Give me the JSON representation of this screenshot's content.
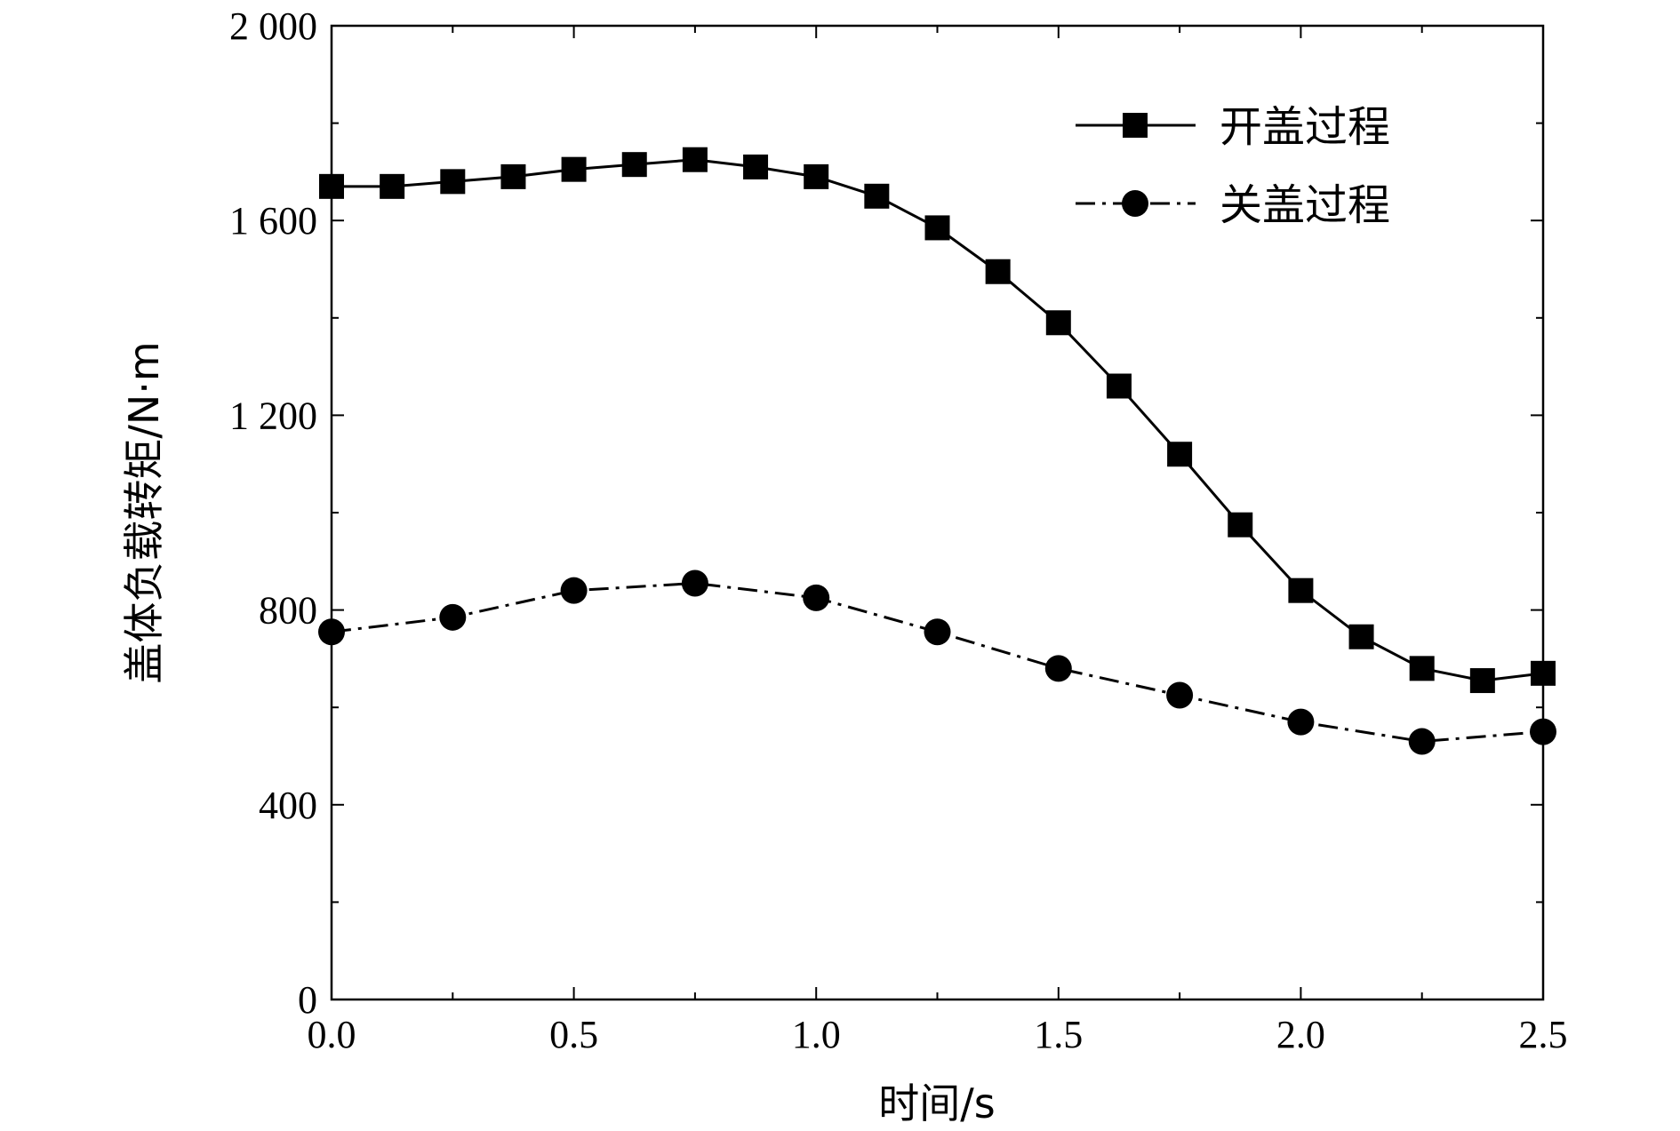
{
  "chart_data": {
    "type": "line",
    "xlabel": "时间/s",
    "ylabel": "盖体负载转矩/N·m",
    "xlim": [
      0,
      2.5
    ],
    "ylim": [
      0,
      2000
    ],
    "x_ticks": [
      "0.0",
      "0.5",
      "1.0",
      "1.5",
      "2.0",
      "2.5"
    ],
    "y_ticks": [
      "0",
      "400",
      "800",
      "1 200",
      "1 600",
      "2 000"
    ],
    "grid": false,
    "legend_position": "top-right",
    "series": [
      {
        "name": "开盖过程",
        "marker": "square",
        "line_style": "solid",
        "color": "#000000",
        "x": [
          0,
          0.125,
          0.25,
          0.375,
          0.5,
          0.625,
          0.75,
          0.875,
          1.0,
          1.125,
          1.25,
          1.375,
          1.5,
          1.625,
          1.75,
          1.875,
          2.0,
          2.125,
          2.25,
          2.375,
          2.5
        ],
        "y": [
          1670,
          1670,
          1680,
          1690,
          1705,
          1715,
          1725,
          1710,
          1690,
          1650,
          1585,
          1495,
          1390,
          1260,
          1120,
          975,
          840,
          745,
          680,
          655,
          670
        ]
      },
      {
        "name": "关盖过程",
        "marker": "circle",
        "line_style": "dash-dot",
        "color": "#000000",
        "x": [
          0,
          0.25,
          0.5,
          0.75,
          1.0,
          1.25,
          1.5,
          1.75,
          2.0,
          2.25,
          2.5
        ],
        "y": [
          755,
          785,
          840,
          855,
          825,
          755,
          680,
          625,
          570,
          530,
          550
        ]
      }
    ]
  }
}
